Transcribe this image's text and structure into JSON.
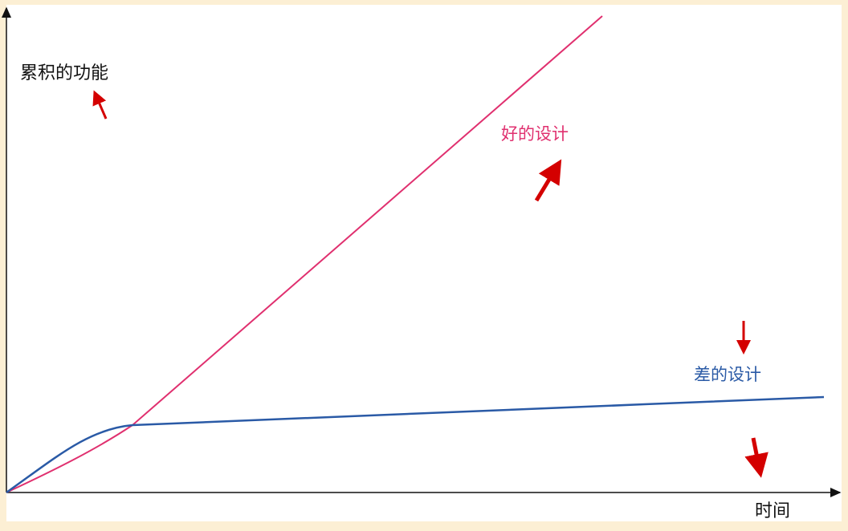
{
  "y_axis_label": "累积的功能",
  "x_axis_label": "时间",
  "curves": [
    {
      "label": "好的设计"
    },
    {
      "label": "差的设计"
    }
  ]
}
